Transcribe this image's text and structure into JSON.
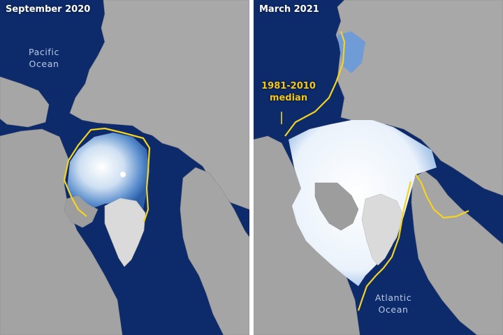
{
  "panels": [
    {
      "title": "September 2020",
      "ocean_label": {
        "line1": "Pacific",
        "line2": "Ocean"
      }
    },
    {
      "title": "March 2021",
      "ocean_label": {
        "line1": "Atlantic",
        "line2": "Ocean"
      }
    }
  ],
  "median_label": {
    "line1": "1981-2010",
    "line2": "median"
  },
  "colors": {
    "ocean": "#0d2b6b",
    "land": "#a9a9a9",
    "ice": "#eef4fb",
    "thin_ice": "#4d86c9",
    "median_line": "#f5d41f",
    "greenland": "#dcdcdc"
  }
}
